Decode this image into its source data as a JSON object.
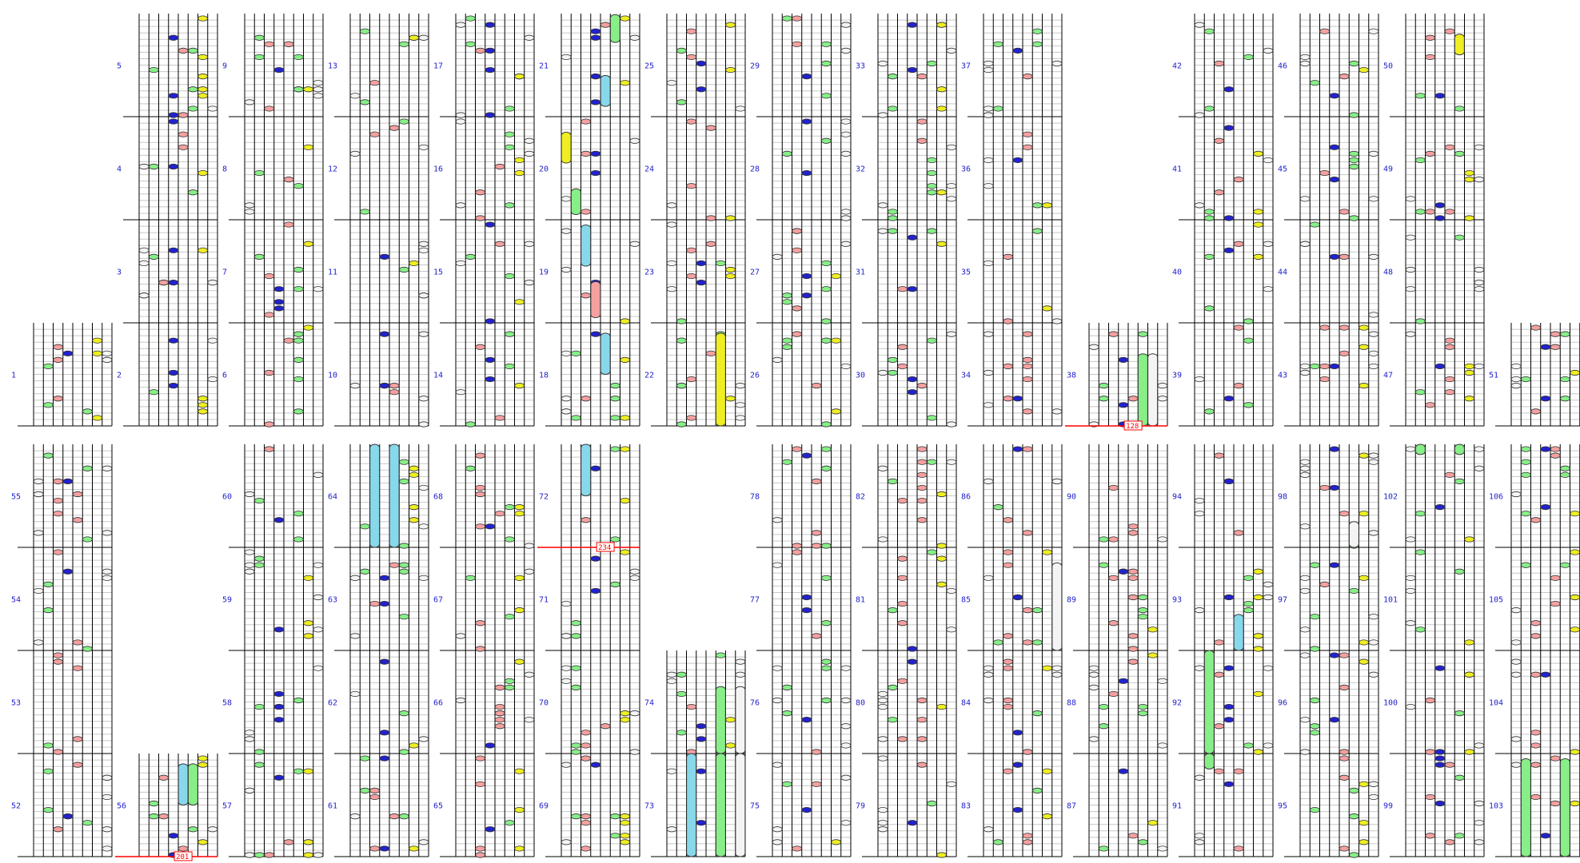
{
  "colors": {
    "background": "#ffffff",
    "lane": "#000000",
    "beat_line": "#000000",
    "sub_line": "#c8c8c8",
    "measure_number": "#2222cc",
    "marker": "#ff0000",
    "notes": {
      "white": "#f4f4f4",
      "green": "#88ee88",
      "blue": "#2222cc",
      "pink": "#f4a0a0",
      "yellow": "#eeee22",
      "cyan": "#88d8ec"
    },
    "note_outline": "#333333"
  },
  "lane_colors": [
    "white",
    "green",
    "pink",
    "blue",
    "pink",
    "green",
    "yellow",
    "white"
  ],
  "icons": {
    "note": "oval-note-icon",
    "long_note": "long-note-icon",
    "marker": "bpm-marker-icon"
  },
  "measure_numbers": [
    "1",
    "2",
    "3",
    "4",
    "5",
    "6",
    "7",
    "8",
    "9",
    "10",
    "11",
    "12",
    "13",
    "14",
    "15",
    "16",
    "17",
    "18",
    "19",
    "20",
    "21",
    "22",
    "23",
    "24",
    "25",
    "26",
    "27",
    "28",
    "29",
    "30",
    "31",
    "32",
    "33",
    "34",
    "35",
    "36",
    "37",
    "38",
    "39",
    "40",
    "41",
    "42",
    "43",
    "44",
    "45",
    "46",
    "47",
    "48",
    "49",
    "50",
    "51",
    "52",
    "53",
    "54",
    "55",
    "56",
    "57",
    "58",
    "59",
    "60",
    "61",
    "62",
    "63",
    "64",
    "65",
    "66",
    "67",
    "68",
    "69",
    "70",
    "71",
    "72",
    "73",
    "74",
    "75",
    "76",
    "77",
    "78",
    "79",
    "80",
    "81",
    "82",
    "83",
    "84",
    "85",
    "86",
    "87",
    "88",
    "89",
    "90",
    "91",
    "92",
    "93",
    "94",
    "95",
    "96",
    "97",
    "98",
    "99",
    "100",
    "101",
    "102",
    "103",
    "104",
    "105",
    "106"
  ],
  "markers": [
    {
      "label": "128",
      "measure": "38"
    },
    {
      "label": "234",
      "measure": "72"
    },
    {
      "label": "201",
      "measure": "56"
    }
  ],
  "long_notes": [
    {
      "measure": "19",
      "lane": 3,
      "color": "cyan",
      "start": 0.55,
      "end": 0.95
    },
    {
      "measure": "19",
      "lane": 4,
      "color": "pink",
      "start": 0.05,
      "end": 0.4
    },
    {
      "measure": "20",
      "lane": 1,
      "color": "yellow",
      "start": 0.55,
      "end": 0.85
    },
    {
      "measure": "20",
      "lane": 2,
      "color": "green",
      "start": 0.05,
      "end": 0.3
    },
    {
      "measure": "21",
      "lane": 5,
      "color": "cyan",
      "start": 0.1,
      "end": 0.4
    },
    {
      "measure": "21",
      "lane": 6,
      "color": "green",
      "start": 0.72,
      "end": 0.99
    },
    {
      "measure": "18",
      "lane": 5,
      "color": "cyan",
      "start": 0.5,
      "end": 0.9
    },
    {
      "measure": "22",
      "lane": 6,
      "color": "yellow",
      "start": 0.0,
      "end": 0.9
    },
    {
      "measure": "38",
      "lane": 6,
      "color": "green",
      "start": 0.0,
      "end": 0.7
    },
    {
      "measure": "38",
      "lane": 7,
      "color": "white",
      "start": 0.0,
      "end": 0.7
    },
    {
      "measure": "50",
      "lane": 6,
      "color": "yellow",
      "start": 0.6,
      "end": 0.8
    },
    {
      "measure": "56",
      "lane": 5,
      "color": "cyan",
      "start": 0.5,
      "end": 0.9
    },
    {
      "measure": "56",
      "lane": 6,
      "color": "green",
      "start": 0.5,
      "end": 0.9
    },
    {
      "measure": "64",
      "lane": 3,
      "color": "cyan",
      "start": 0.0,
      "end": 1.0
    },
    {
      "measure": "64",
      "lane": 5,
      "color": "cyan",
      "start": 0.0,
      "end": 1.0
    },
    {
      "measure": "72",
      "lane": 3,
      "color": "cyan",
      "start": 0.5,
      "end": 1.0
    },
    {
      "measure": "73",
      "lane": 3,
      "color": "cyan",
      "start": 0.0,
      "end": 1.0
    },
    {
      "measure": "73",
      "lane": 6,
      "color": "green",
      "start": 0.0,
      "end": 1.0
    },
    {
      "measure": "73",
      "lane": 8,
      "color": "white",
      "start": 0.0,
      "end": 1.0
    },
    {
      "measure": "74",
      "lane": 6,
      "color": "green",
      "start": 0.0,
      "end": 0.65
    },
    {
      "measure": "74",
      "lane": 8,
      "color": "white",
      "start": 0.0,
      "end": 0.65
    },
    {
      "measure": "85",
      "lane": 8,
      "color": "white",
      "start": 0.0,
      "end": 0.85
    },
    {
      "measure": "92",
      "lane": 2,
      "color": "green",
      "start": 0.0,
      "end": 1.0
    },
    {
      "measure": "91",
      "lane": 2,
      "color": "green",
      "start": 0.85,
      "end": 1.0
    },
    {
      "measure": "93",
      "lane": 5,
      "color": "cyan",
      "start": 0.0,
      "end": 0.35
    },
    {
      "measure": "98",
      "lane": 6,
      "color": "white",
      "start": 0.0,
      "end": 0.25
    },
    {
      "measure": "102",
      "lane": 2,
      "color": "green",
      "start": 0.9,
      "end": 1.0
    },
    {
      "measure": "102",
      "lane": 6,
      "color": "green",
      "start": 0.9,
      "end": 1.0
    },
    {
      "measure": "103",
      "lane": 2,
      "color": "green",
      "start": 0.0,
      "end": 0.95
    },
    {
      "measure": "103",
      "lane": 6,
      "color": "green",
      "start": 0.0,
      "end": 0.95
    }
  ]
}
